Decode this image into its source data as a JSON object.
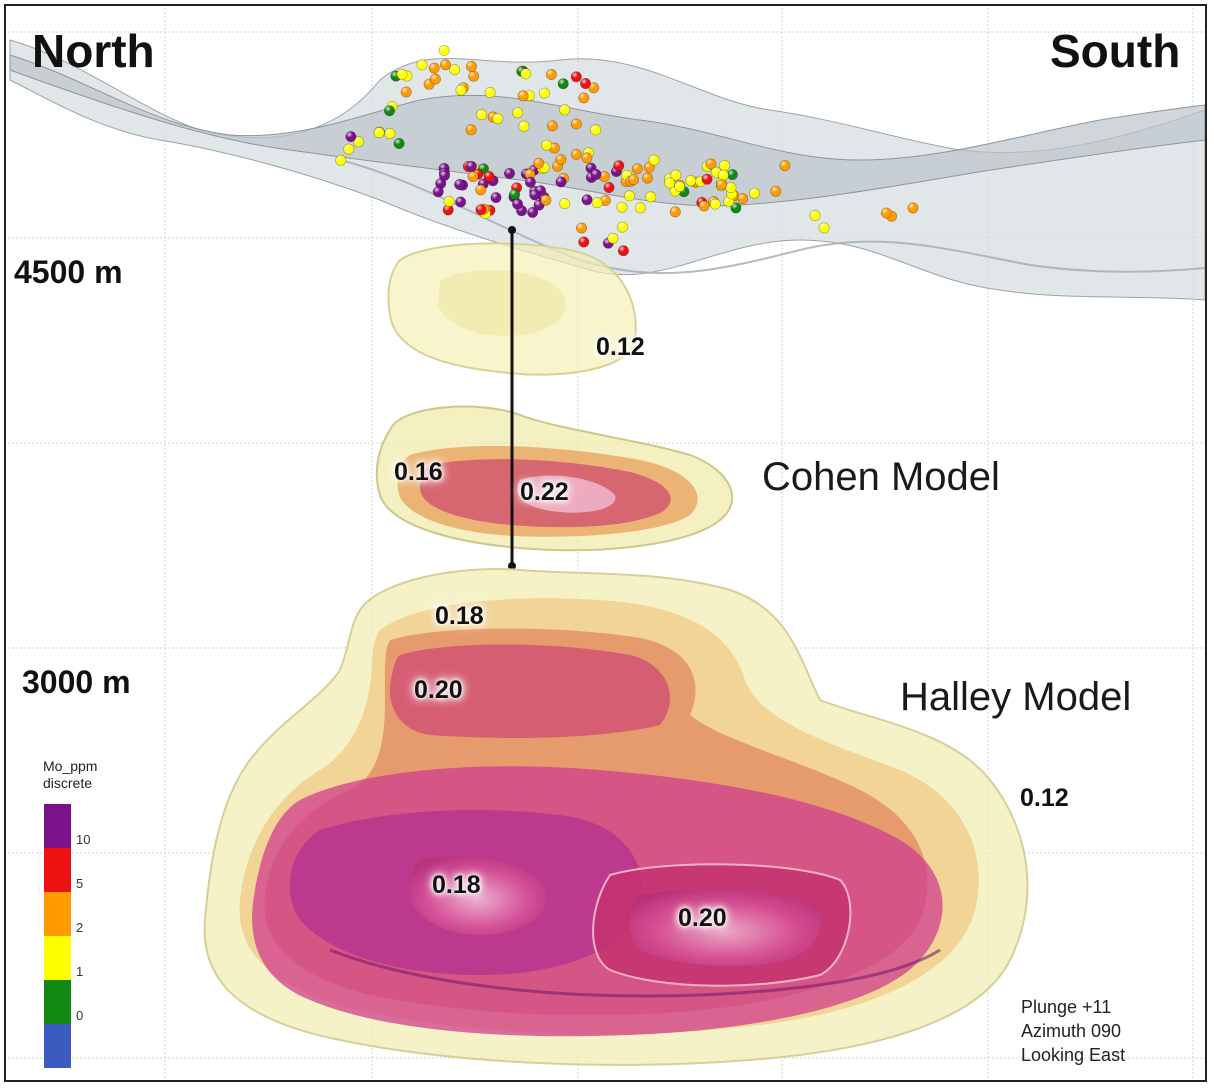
{
  "orientation": {
    "north": "North",
    "south": "South"
  },
  "depths": {
    "upper": "4500 m",
    "lower": "3000 m"
  },
  "models": {
    "cohen": "Cohen Model",
    "halley": "Halley Model"
  },
  "grades": {
    "upper_shell": "0.12",
    "cohen_left": "0.16",
    "cohen_core": "0.22",
    "halley_top": "0.18",
    "halley_upper_core": "0.20",
    "halley_outer": "0.12",
    "halley_lower_left": "0.18",
    "halley_lower_core": "0.20"
  },
  "legend": {
    "title_line1": "Mo_ppm",
    "title_line2": "discrete",
    "bins": [
      {
        "label": "10",
        "color": "#7b128c"
      },
      {
        "label": "5",
        "color": "#ee1111"
      },
      {
        "label": "2",
        "color": "#ff9a00"
      },
      {
        "label": "1",
        "color": "#ffff00"
      },
      {
        "label": "0",
        "color": "#118811"
      },
      {
        "label": "",
        "color": "#3c5bbf"
      }
    ]
  },
  "view": {
    "plunge": "Plunge +11",
    "azimuth": "Azimuth 090",
    "looking": "Looking East"
  }
}
